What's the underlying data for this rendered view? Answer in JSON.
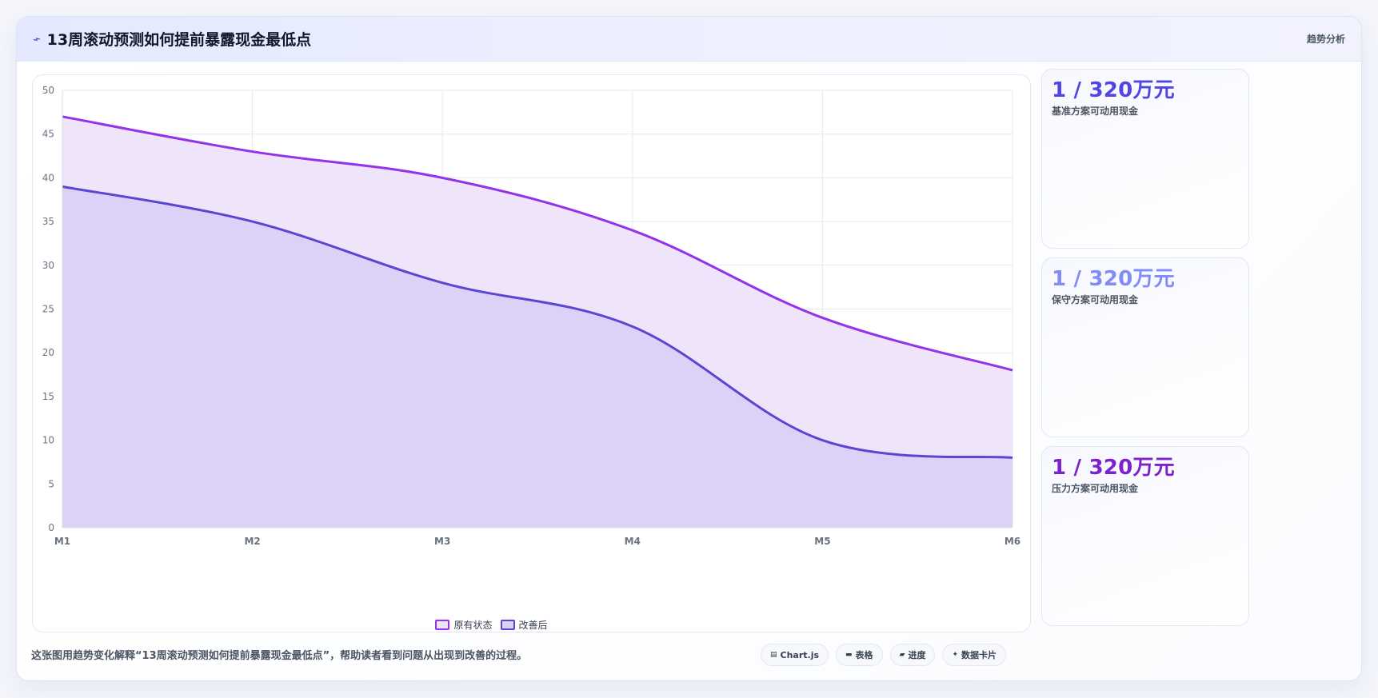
{
  "header": {
    "icon": "trend-icon",
    "title": "13周滚动预测如何提前暴露现金最低点",
    "tag": "趋势分析"
  },
  "colors": {
    "series1_line": "#9333ea",
    "series1_fill": "#efe3fa",
    "series2_line": "#5b45d3",
    "series2_fill": "#dcd0f8",
    "kpi1": "#4f46e5",
    "kpi2": "#818cf8",
    "kpi3": "#7e22ce"
  },
  "chart_data": {
    "type": "area",
    "categories": [
      "M1",
      "M2",
      "M3",
      "M4",
      "M5",
      "M6"
    ],
    "series": [
      {
        "name": "原有状态",
        "values": [
          47,
          43,
          40,
          34,
          24,
          18
        ]
      },
      {
        "name": "改善后",
        "values": [
          39,
          35,
          28,
          23,
          10,
          8
        ]
      }
    ],
    "yticks": [
      0,
      5,
      10,
      15,
      20,
      25,
      30,
      35,
      40,
      45,
      50
    ],
    "ylim": [
      0,
      50
    ],
    "grid": true,
    "legend_position": "bottom"
  },
  "kpis": [
    {
      "value": "1 / 320万元",
      "label": "基准方案可动用现金"
    },
    {
      "value": "1 / 320万元",
      "label": "保守方案可动用现金"
    },
    {
      "value": "1 / 320万元",
      "label": "压力方案可动用现金"
    }
  ],
  "footer": {
    "text": "这张图用趋势变化解释“13周滚动预测如何提前暴露现金最低点”，帮助读者看到问题从出现到改善的过程。",
    "chips": [
      {
        "icon": "chart-icon",
        "label": "Chart.js"
      },
      {
        "icon": "table-icon",
        "label": "表格"
      },
      {
        "icon": "progress-icon",
        "label": "进度"
      },
      {
        "icon": "data-card-icon",
        "label": "数据卡片"
      }
    ]
  }
}
